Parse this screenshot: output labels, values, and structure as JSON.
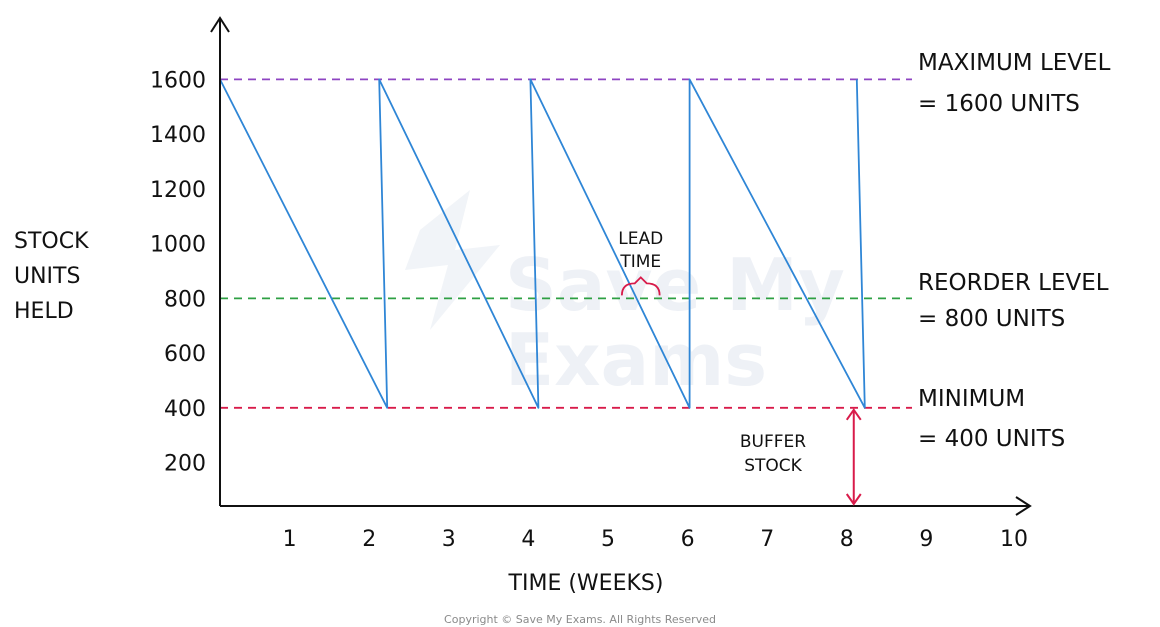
{
  "chart_data": {
    "type": "line",
    "xlabel": "TIME (WEEKS)",
    "ylabel_lines": [
      "STOCK",
      "UNITS",
      "HELD"
    ],
    "x_ticks": [
      "1",
      "2",
      "3",
      "4",
      "5",
      "6",
      "7",
      "8",
      "9",
      "10"
    ],
    "y_ticks": [
      "200",
      "400",
      "600",
      "800",
      "1000",
      "1200",
      "1400",
      "1600"
    ],
    "xlim": [
      0,
      10.6
    ],
    "ylim": [
      50,
      1800
    ],
    "series": [
      {
        "color": "#2f86d6",
        "points": [
          [
            0,
            1600
          ],
          [
            2.1,
            400
          ],
          [
            2.0,
            1600
          ],
          [
            4.0,
            400
          ],
          [
            3.9,
            1600
          ],
          [
            5.9,
            400
          ],
          [
            5.9,
            1600
          ],
          [
            8.1,
            400
          ],
          [
            8.0,
            1600
          ]
        ]
      }
    ],
    "reference_lines": [
      {
        "y": 1600,
        "color": "#8e44c2",
        "label_lines": [
          "MAXIMUM LEVEL",
          "= 1600 UNITS"
        ]
      },
      {
        "y": 800,
        "color": "#2ea043",
        "label_lines": [
          "REORDER LEVEL",
          "= 800 UNITS"
        ]
      },
      {
        "y": 400,
        "color": "#d81b4a",
        "label_lines": [
          "MINIMUM",
          "= 400 UNITS"
        ]
      }
    ],
    "annotations": {
      "lead_time": {
        "lines": [
          "LEAD",
          "TIME"
        ],
        "x_from": 5.3,
        "x_to": 5.9,
        "y": 800,
        "color": "#d81b4a"
      },
      "buffer_stock": {
        "lines": [
          "BUFFER",
          "STOCK"
        ],
        "x": 8.1,
        "y_from": 400,
        "y_to": 0,
        "color": "#d81b4a"
      }
    },
    "grid": false,
    "legend": "none"
  },
  "watermark": [
    "Save My",
    "Exams"
  ],
  "copyright": "Copyright © Save My Exams. All Rights Reserved"
}
